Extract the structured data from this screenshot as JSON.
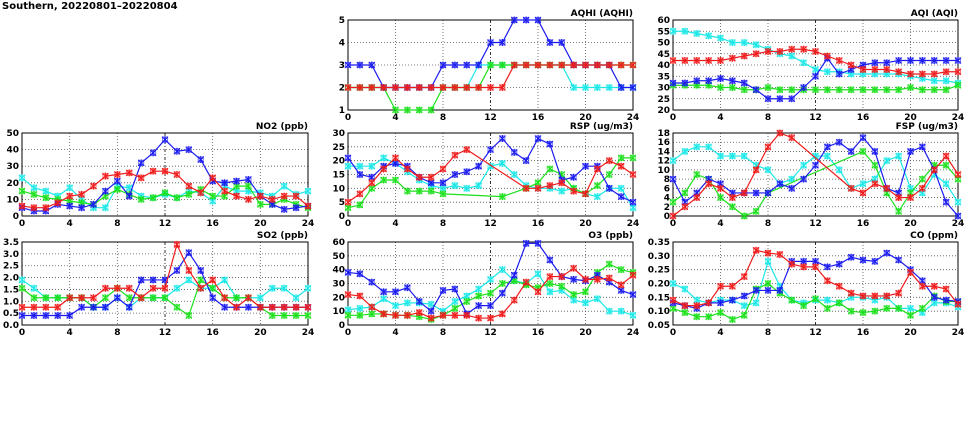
{
  "title": "Southern, 20220801–20220804",
  "colors": {
    "blue": "#1c1cf0",
    "red": "#f01c1c",
    "green": "#1ce01c",
    "cyan": "#1ce8e8"
  },
  "chart_data": [
    {
      "type": "line",
      "id": "aqhi",
      "title": "AQHI (AQHI)",
      "ylim": [
        1,
        5
      ],
      "yticks": [
        "1",
        "2",
        "3",
        "4",
        "5"
      ],
      "xlim": [
        0,
        24
      ],
      "xticks": [
        "0",
        "4",
        "8",
        "12",
        "16",
        "20",
        "24"
      ],
      "grid": true,
      "series": [
        {
          "name": "cyan",
          "values": [
            2,
            2,
            2,
            2,
            2,
            2,
            2,
            2,
            2,
            2,
            2,
            3,
            3,
            3,
            3,
            3,
            3,
            3,
            3,
            2,
            2,
            2,
            2,
            2,
            2
          ]
        },
        {
          "name": "green",
          "values": [
            2,
            2,
            2,
            2,
            1,
            1,
            1,
            1,
            2,
            2,
            2,
            2,
            3,
            3,
            3,
            3,
            3,
            3,
            3,
            3,
            3,
            3,
            3,
            3,
            3
          ]
        },
        {
          "name": "blue",
          "values": [
            3,
            3,
            3,
            2,
            2,
            2,
            2,
            2,
            3,
            3,
            3,
            3,
            4,
            4,
            5,
            5,
            5,
            4,
            4,
            3,
            3,
            3,
            3,
            2,
            2
          ]
        },
        {
          "name": "red",
          "values": [
            2,
            2,
            2,
            2,
            2,
            2,
            2,
            2,
            2,
            2,
            2,
            2,
            2,
            2,
            3,
            3,
            3,
            3,
            3,
            3,
            3,
            3,
            3,
            3,
            3
          ]
        }
      ]
    },
    {
      "type": "line",
      "id": "aqi",
      "title": "AQI (AQI)",
      "ylim": [
        20,
        60
      ],
      "yticks": [
        "20",
        "25",
        "30",
        "35",
        "40",
        "45",
        "50",
        "55",
        "60"
      ],
      "xlim": [
        0,
        24
      ],
      "xticks": [
        "0",
        "4",
        "8",
        "12",
        "16",
        "20",
        "24"
      ],
      "grid": true,
      "series": [
        {
          "name": "cyan",
          "values": [
            55,
            55,
            54,
            53,
            52,
            50,
            50,
            49,
            47,
            45,
            44,
            41,
            38,
            37,
            37,
            36,
            36,
            36,
            36,
            36,
            35,
            34,
            33,
            33,
            32
          ]
        },
        {
          "name": "green",
          "values": [
            31,
            31,
            31,
            31,
            30,
            30,
            29,
            29,
            30,
            29,
            29,
            29,
            29,
            29,
            29,
            29,
            29,
            29,
            29,
            29,
            30,
            29,
            29,
            29,
            31
          ]
        },
        {
          "name": "blue",
          "values": [
            32,
            32,
            33,
            33,
            34,
            33,
            32,
            29,
            25,
            25,
            25,
            30,
            35,
            43,
            36,
            38,
            40,
            41,
            41,
            42,
            42,
            42,
            42,
            42,
            42
          ]
        },
        {
          "name": "red",
          "values": [
            42,
            42,
            42,
            42,
            42,
            43,
            44,
            45,
            46,
            46,
            47,
            47,
            46,
            44,
            42,
            40,
            38,
            38,
            38,
            37,
            36,
            36,
            36,
            37,
            37
          ]
        }
      ]
    },
    {
      "type": "line",
      "id": "no2",
      "title": "NO2 (ppb)",
      "ylim": [
        0,
        50
      ],
      "yticks": [
        "0",
        "10",
        "20",
        "30",
        "40",
        "50"
      ],
      "xlim": [
        0,
        24
      ],
      "xticks": [
        "0",
        "4",
        "8",
        "12",
        "16",
        "20",
        "24"
      ],
      "grid": true,
      "series": [
        {
          "name": "cyan",
          "values": [
            23,
            17,
            15,
            12,
            17,
            10,
            5,
            5,
            18,
            17,
            12,
            11,
            13,
            11,
            15,
            14,
            9,
            18,
            15,
            15,
            14,
            12,
            18,
            13,
            15
          ]
        },
        {
          "name": "green",
          "values": [
            15,
            13,
            11,
            10,
            9,
            8,
            7,
            12,
            16,
            13,
            10,
            11,
            14,
            11,
            13,
            16,
            12,
            12,
            18,
            18,
            7,
            7,
            10,
            7,
            5
          ]
        },
        {
          "name": "blue",
          "values": [
            5,
            3,
            3,
            7,
            6,
            5,
            7,
            15,
            21,
            12,
            32,
            38,
            46,
            39,
            40,
            34,
            21,
            20,
            21,
            22,
            12,
            7,
            4,
            5,
            6
          ]
        },
        {
          "name": "red",
          "values": [
            6,
            5,
            5,
            8,
            12,
            13,
            18,
            24,
            25,
            26,
            23,
            27,
            27,
            25,
            18,
            14,
            23,
            15,
            12,
            10,
            12,
            10,
            12,
            12,
            6
          ]
        }
      ]
    },
    {
      "type": "line",
      "id": "rsp",
      "title": "RSP (ug/m3)",
      "ylim": [
        0,
        30
      ],
      "yticks": [
        "0",
        "5",
        "10",
        "15",
        "20",
        "25",
        "30"
      ],
      "xlim": [
        0,
        24
      ],
      "xticks": [
        "0",
        "4",
        "8",
        "12",
        "16",
        "20",
        "24"
      ],
      "grid": true,
      "series": [
        {
          "name": "cyan",
          "values": [
            18,
            18,
            18,
            21,
            19,
            16,
            13,
            11,
            10,
            11,
            10,
            11,
            18,
            19,
            15,
            11,
            10,
            10,
            9,
            10,
            8,
            7,
            10,
            10,
            3
          ]
        },
        {
          "name": "green",
          "values": [
            3,
            4,
            10,
            13,
            13,
            9,
            9,
            9,
            8,
            null,
            null,
            null,
            null,
            7,
            null,
            10,
            12,
            17,
            15,
            10,
            8,
            11,
            15,
            21,
            21
          ]
        },
        {
          "name": "blue",
          "values": [
            21,
            15,
            14,
            18,
            19,
            18,
            14,
            12,
            12,
            15,
            16,
            18,
            24,
            28,
            23,
            20,
            28,
            26,
            13,
            14,
            18,
            18,
            10,
            7,
            5
          ]
        },
        {
          "name": "red",
          "values": [
            5,
            8,
            12,
            17,
            21,
            17,
            14,
            14,
            17,
            22,
            24,
            null,
            null,
            null,
            null,
            10,
            10,
            11,
            12,
            9,
            8,
            17,
            20,
            18,
            15
          ]
        }
      ]
    },
    {
      "type": "line",
      "id": "fsp",
      "title": "FSP (ug/m3)",
      "ylim": [
        0,
        18
      ],
      "yticks": [
        "0",
        "2",
        "4",
        "6",
        "8",
        "10",
        "12",
        "14",
        "16",
        "18"
      ],
      "xlim": [
        0,
        24
      ],
      "xticks": [
        "0",
        "4",
        "8",
        "12",
        "16",
        "20",
        "24"
      ],
      "grid": true,
      "series": [
        {
          "name": "cyan",
          "values": [
            12,
            14,
            15,
            15,
            13,
            13,
            13,
            11,
            10,
            7,
            8,
            11,
            13,
            13,
            10,
            6,
            7,
            8,
            12,
            13,
            6,
            5,
            9,
            7,
            3
          ]
        },
        {
          "name": "green",
          "values": [
            3,
            5,
            9,
            8,
            4,
            2,
            0,
            1,
            5,
            null,
            null,
            null,
            null,
            null,
            null,
            null,
            14,
            11,
            5,
            1,
            5,
            8,
            11,
            11,
            8
          ]
        },
        {
          "name": "blue",
          "values": [
            8,
            3,
            5,
            8,
            7,
            5,
            5,
            5,
            5,
            7,
            6,
            8,
            11,
            15,
            16,
            14,
            17,
            14,
            6,
            5,
            14,
            15,
            10,
            3,
            0
          ]
        },
        {
          "name": "red",
          "values": [
            0,
            2,
            4,
            7,
            6,
            4,
            5,
            10,
            15,
            18,
            17,
            null,
            null,
            null,
            null,
            6,
            5,
            7,
            6,
            4,
            4,
            6,
            10,
            13,
            9
          ]
        }
      ]
    },
    {
      "type": "line",
      "id": "so2",
      "title": "SO2 (ppb)",
      "ylim": [
        0,
        3.5
      ],
      "yticks": [
        "0.0",
        "0.5",
        "1.0",
        "1.5",
        "2.0",
        "2.5",
        "3.0",
        "3.5"
      ],
      "xlim": [
        0,
        24
      ],
      "xticks": [
        "0",
        "4",
        "8",
        "12",
        "16",
        "20",
        "24"
      ],
      "grid": true,
      "series": [
        {
          "name": "cyan",
          "values": [
            1.9,
            1.55,
            1.15,
            1.15,
            1.15,
            1.15,
            0.75,
            0.75,
            1.15,
            0.75,
            1.15,
            1.15,
            1.15,
            1.55,
            1.9,
            1.55,
            1.55,
            1.9,
            1.15,
            1.15,
            1.15,
            1.55,
            1.55,
            1.15,
            1.55
          ]
        },
        {
          "name": "green",
          "values": [
            1.55,
            1.15,
            1.15,
            1.15,
            1.15,
            1.15,
            0.75,
            1.15,
            1.55,
            1.15,
            1.15,
            1.15,
            1.15,
            0.75,
            0.4,
            1.9,
            1.55,
            1.15,
            1.15,
            1.15,
            0.75,
            0.4,
            0.4,
            0.4,
            0.4
          ]
        },
        {
          "name": "blue",
          "values": [
            0.4,
            0.4,
            0.4,
            0.4,
            0.4,
            0.75,
            0.75,
            0.75,
            1.15,
            0.75,
            1.9,
            1.9,
            1.9,
            2.3,
            3.05,
            2.3,
            1.15,
            0.75,
            0.75,
            0.75,
            0.75,
            0.75,
            0.75,
            0.75,
            0.75
          ]
        },
        {
          "name": "red",
          "values": [
            0.75,
            0.75,
            0.75,
            0.75,
            1.15,
            1.15,
            1.15,
            1.55,
            1.55,
            1.55,
            1.15,
            1.55,
            1.55,
            3.4,
            2.3,
            1.55,
            1.9,
            1.15,
            0.75,
            1.15,
            0.75,
            0.75,
            0.75,
            0.75,
            0.75
          ]
        }
      ]
    },
    {
      "type": "line",
      "id": "o3",
      "title": "O3 (ppb)",
      "ylim": [
        0,
        60
      ],
      "yticks": [
        "0",
        "10",
        "20",
        "30",
        "40",
        "50",
        "60"
      ],
      "xlim": [
        0,
        24
      ],
      "xticks": [
        "0",
        "4",
        "8",
        "12",
        "16",
        "20",
        "24"
      ],
      "grid": true,
      "series": [
        {
          "name": "cyan",
          "values": [
            11,
            12,
            13,
            19,
            14,
            16,
            16,
            15,
            10,
            17,
            21,
            26,
            33,
            40,
            32,
            30,
            37,
            24,
            25,
            18,
            16,
            19,
            10,
            10,
            7
          ]
        },
        {
          "name": "green",
          "values": [
            7,
            7,
            8,
            8,
            7,
            7,
            6,
            4,
            7,
            12,
            17,
            21,
            23,
            30,
            32,
            29,
            27,
            30,
            28,
            22,
            24,
            38,
            44,
            40,
            38
          ]
        },
        {
          "name": "blue",
          "values": [
            38,
            37,
            31,
            24,
            24,
            27,
            17,
            10,
            25,
            26,
            8,
            14,
            14,
            23,
            36,
            59,
            59,
            47,
            35,
            33,
            32,
            36,
            31,
            25,
            22
          ]
        },
        {
          "name": "red",
          "values": [
            22,
            21,
            13,
            8,
            7,
            7,
            9,
            5,
            7,
            7,
            7,
            5,
            5,
            8,
            18,
            31,
            24,
            35,
            35,
            41,
            33,
            33,
            34,
            29,
            36
          ]
        }
      ]
    },
    {
      "type": "line",
      "id": "co",
      "title": "CO (ppm)",
      "ylim": [
        0.05,
        0.35
      ],
      "yticks": [
        "0.05",
        "0.10",
        "0.15",
        "0.20",
        "0.25",
        "0.30",
        "0.35"
      ],
      "xlim": [
        0,
        24
      ],
      "xticks": [
        "0",
        "4",
        "8",
        "12",
        "16",
        "20",
        "24"
      ],
      "grid": true,
      "series": [
        {
          "name": "cyan",
          "values": [
            0.2,
            0.18,
            0.14,
            0.13,
            0.14,
            0.14,
            0.12,
            0.13,
            0.28,
            0.19,
            0.14,
            0.13,
            0.14,
            0.14,
            0.13,
            0.15,
            0.15,
            0.14,
            0.15,
            0.11,
            0.11,
            0.095,
            0.13,
            0.13,
            0.115
          ]
        },
        {
          "name": "green",
          "values": [
            0.11,
            0.095,
            0.08,
            0.08,
            0.095,
            0.07,
            0.085,
            0.18,
            0.2,
            0.165,
            0.14,
            0.12,
            0.145,
            0.11,
            0.13,
            0.1,
            0.095,
            0.1,
            0.11,
            0.11,
            0.085,
            0.11,
            0.155,
            0.135,
            0.135
          ]
        },
        {
          "name": "blue",
          "values": [
            0.13,
            0.12,
            0.11,
            0.13,
            0.13,
            0.14,
            0.155,
            0.175,
            0.175,
            0.175,
            0.28,
            0.28,
            0.28,
            0.26,
            0.27,
            0.295,
            0.285,
            0.28,
            0.31,
            0.285,
            0.25,
            0.21,
            0.15,
            0.14,
            0.135
          ]
        },
        {
          "name": "red",
          "values": [
            0.14,
            0.12,
            0.12,
            0.13,
            0.19,
            0.19,
            0.225,
            0.32,
            0.31,
            0.305,
            0.27,
            0.26,
            0.26,
            0.21,
            0.19,
            0.165,
            0.155,
            0.155,
            0.155,
            0.165,
            0.24,
            0.19,
            0.19,
            0.18,
            0.125
          ]
        }
      ]
    }
  ]
}
